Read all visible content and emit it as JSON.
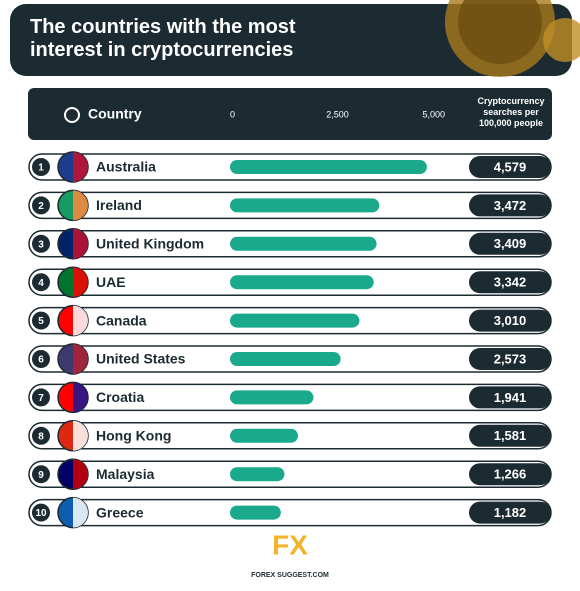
{
  "chart_data": {
    "type": "bar",
    "orientation": "horizontal",
    "title": "The countries with the most interest in cryptocurrencies",
    "category_label": "Country",
    "value_label": "Cryptocurrency searches per 100,000 people",
    "ranks": [
      1,
      2,
      3,
      4,
      5,
      6,
      7,
      8,
      9,
      10
    ],
    "categories": [
      "Australia",
      "Ireland",
      "United Kingdom",
      "UAE",
      "Canada",
      "United States",
      "Croatia",
      "Hong Kong",
      "Malaysia",
      "Greece"
    ],
    "values": [
      4579,
      3472,
      3409,
      3342,
      3010,
      2573,
      1941,
      1581,
      1266,
      1182
    ],
    "value_labels": [
      "4,579",
      "3,472",
      "3,409",
      "3,342",
      "3,010",
      "2,573",
      "1,941",
      "1,581",
      "1,266",
      "1,182"
    ],
    "color": "#1aa98b",
    "xlim": [
      0,
      5000
    ],
    "xticks": [
      0,
      {
        "value": 2500,
        "label": "2,500"
      },
      {
        "value": 5000,
        "label": "5,000"
      }
    ],
    "logo": {
      "mark": "FX",
      "text": "FOREX SUGGEST.COM"
    }
  }
}
